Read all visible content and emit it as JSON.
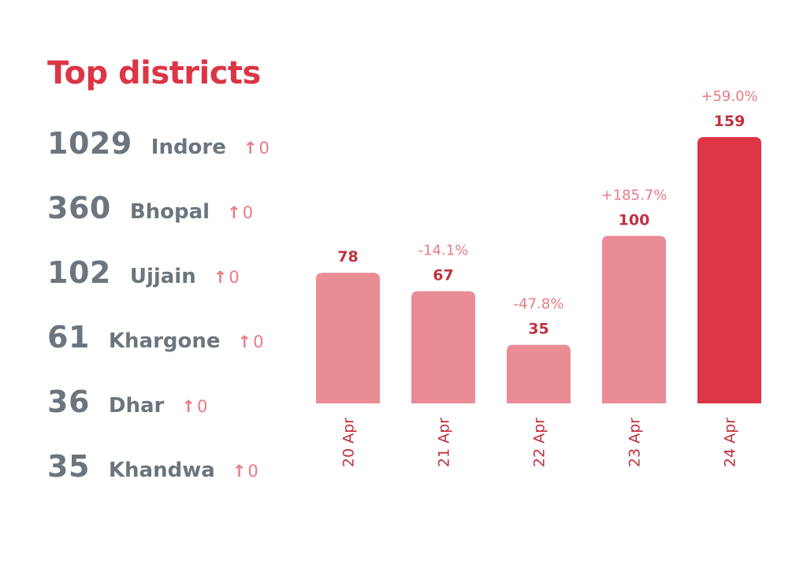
{
  "title": "Top districts",
  "districts": [
    {
      "count": "1029",
      "name": "Indore",
      "delta": "0"
    },
    {
      "count": "360",
      "name": "Bhopal",
      "delta": "0"
    },
    {
      "count": "102",
      "name": "Ujjain",
      "delta": "0"
    },
    {
      "count": "61",
      "name": "Khargone",
      "delta": "0"
    },
    {
      "count": "36",
      "name": "Dhar",
      "delta": "0"
    },
    {
      "count": "35",
      "name": "Khandwa",
      "delta": "0"
    }
  ],
  "colors": {
    "accent": "#dc3545",
    "bar": "#e98c96",
    "highlight_bar": "#dc3545",
    "text_muted": "#6c757d",
    "pct_label": "#e77b86",
    "value_label": "#c0313f"
  },
  "icons": {
    "delta": "arrow-up-icon"
  },
  "chart_data": {
    "type": "bar",
    "categories": [
      "20 Apr",
      "21 Apr",
      "22 Apr",
      "23 Apr",
      "24 Apr"
    ],
    "values": [
      78,
      67,
      35,
      100,
      159
    ],
    "value_labels": [
      "78",
      "67",
      "35",
      "100",
      "159"
    ],
    "change_labels": [
      "",
      "-14.1%",
      "-47.8%",
      "+185.7%",
      "+59.0%"
    ],
    "highlight_index": 4,
    "ylim": [
      0,
      159
    ],
    "title": "",
    "xlabel": "",
    "ylabel": "",
    "grid": false
  }
}
